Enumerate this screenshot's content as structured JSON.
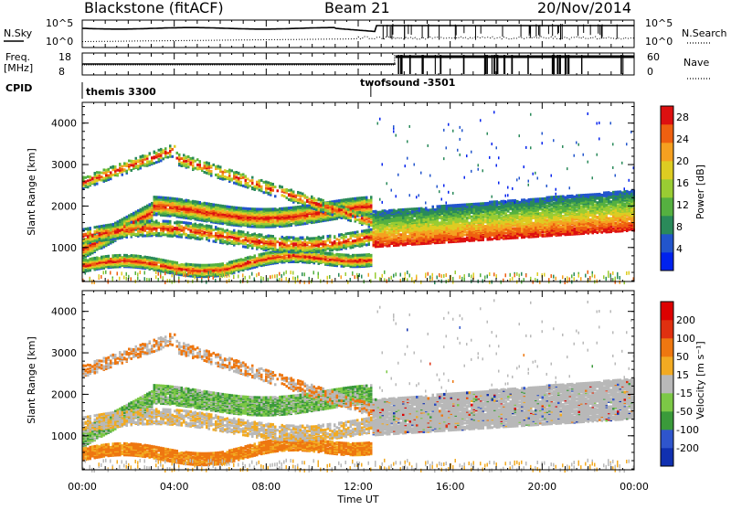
{
  "header": {
    "station": "Blackstone (fitACF)",
    "beam": "Beam 21",
    "date": "20/Nov/2014"
  },
  "info_panels": {
    "nsky_label": "N.Sky",
    "nsearch_label": "N.Search",
    "noise_ticks_left": [
      "10^5",
      "10^0"
    ],
    "noise_ticks_right": [
      "10^5",
      "10^0"
    ],
    "freq_label": "Freq.",
    "freq_unit": "[MHz]",
    "freq_ticks": [
      "18",
      "8"
    ],
    "nave_label": "Nave",
    "nave_ticks": [
      "60",
      "0"
    ],
    "cpid_label": "CPID",
    "cpid_segments": [
      {
        "label": "themis 3300",
        "start_hour": 0.0,
        "end_hour": 12.55
      },
      {
        "label": "twofsound -3501",
        "start_hour": 12.55,
        "end_hour": 24.0
      }
    ]
  },
  "chart_data": [
    {
      "type": "heatmap",
      "name": "power",
      "xlabel": "Time UT",
      "ylabel": "Slant Range [km]",
      "x_ticks": [
        "00:00",
        "04:00",
        "08:00",
        "12:00",
        "16:00",
        "20:00",
        "00:00"
      ],
      "xlim_hours": [
        0,
        24
      ],
      "ylim_km": [
        180,
        4500
      ],
      "y_ticks": [
        1000,
        2000,
        3000,
        4000
      ],
      "colorbar": {
        "label": "Power [dB]",
        "ticks": [
          "4",
          "8",
          "12",
          "16",
          "20",
          "24",
          "28"
        ],
        "range": [
          0,
          30
        ],
        "colors": [
          "#0022ee",
          "#2255cc",
          "#2a8a5a",
          "#55b040",
          "#99cc33",
          "#ddcc22",
          "#f5a020",
          "#ee6010",
          "#dd1010"
        ]
      }
    },
    {
      "type": "heatmap",
      "name": "velocity",
      "xlabel": "Time UT",
      "ylabel": "Slant Range [km]",
      "x_ticks": [
        "00:00",
        "04:00",
        "08:00",
        "12:00",
        "16:00",
        "20:00",
        "00:00"
      ],
      "xlim_hours": [
        0,
        24
      ],
      "ylim_km": [
        180,
        4500
      ],
      "y_ticks": [
        1000,
        2000,
        3000,
        4000
      ],
      "colorbar": {
        "label": "Velocity [m s⁻¹]",
        "ticks": [
          "200",
          "100",
          "50",
          "15",
          "-15",
          "-50",
          "-100",
          "-200"
        ],
        "colors": [
          "#1030b0",
          "#2f55cc",
          "#3a9a3a",
          "#7cc846",
          "#b8b8b8",
          "#f2aa22",
          "#ee7710",
          "#e03010",
          "#dd0000"
        ]
      }
    }
  ]
}
